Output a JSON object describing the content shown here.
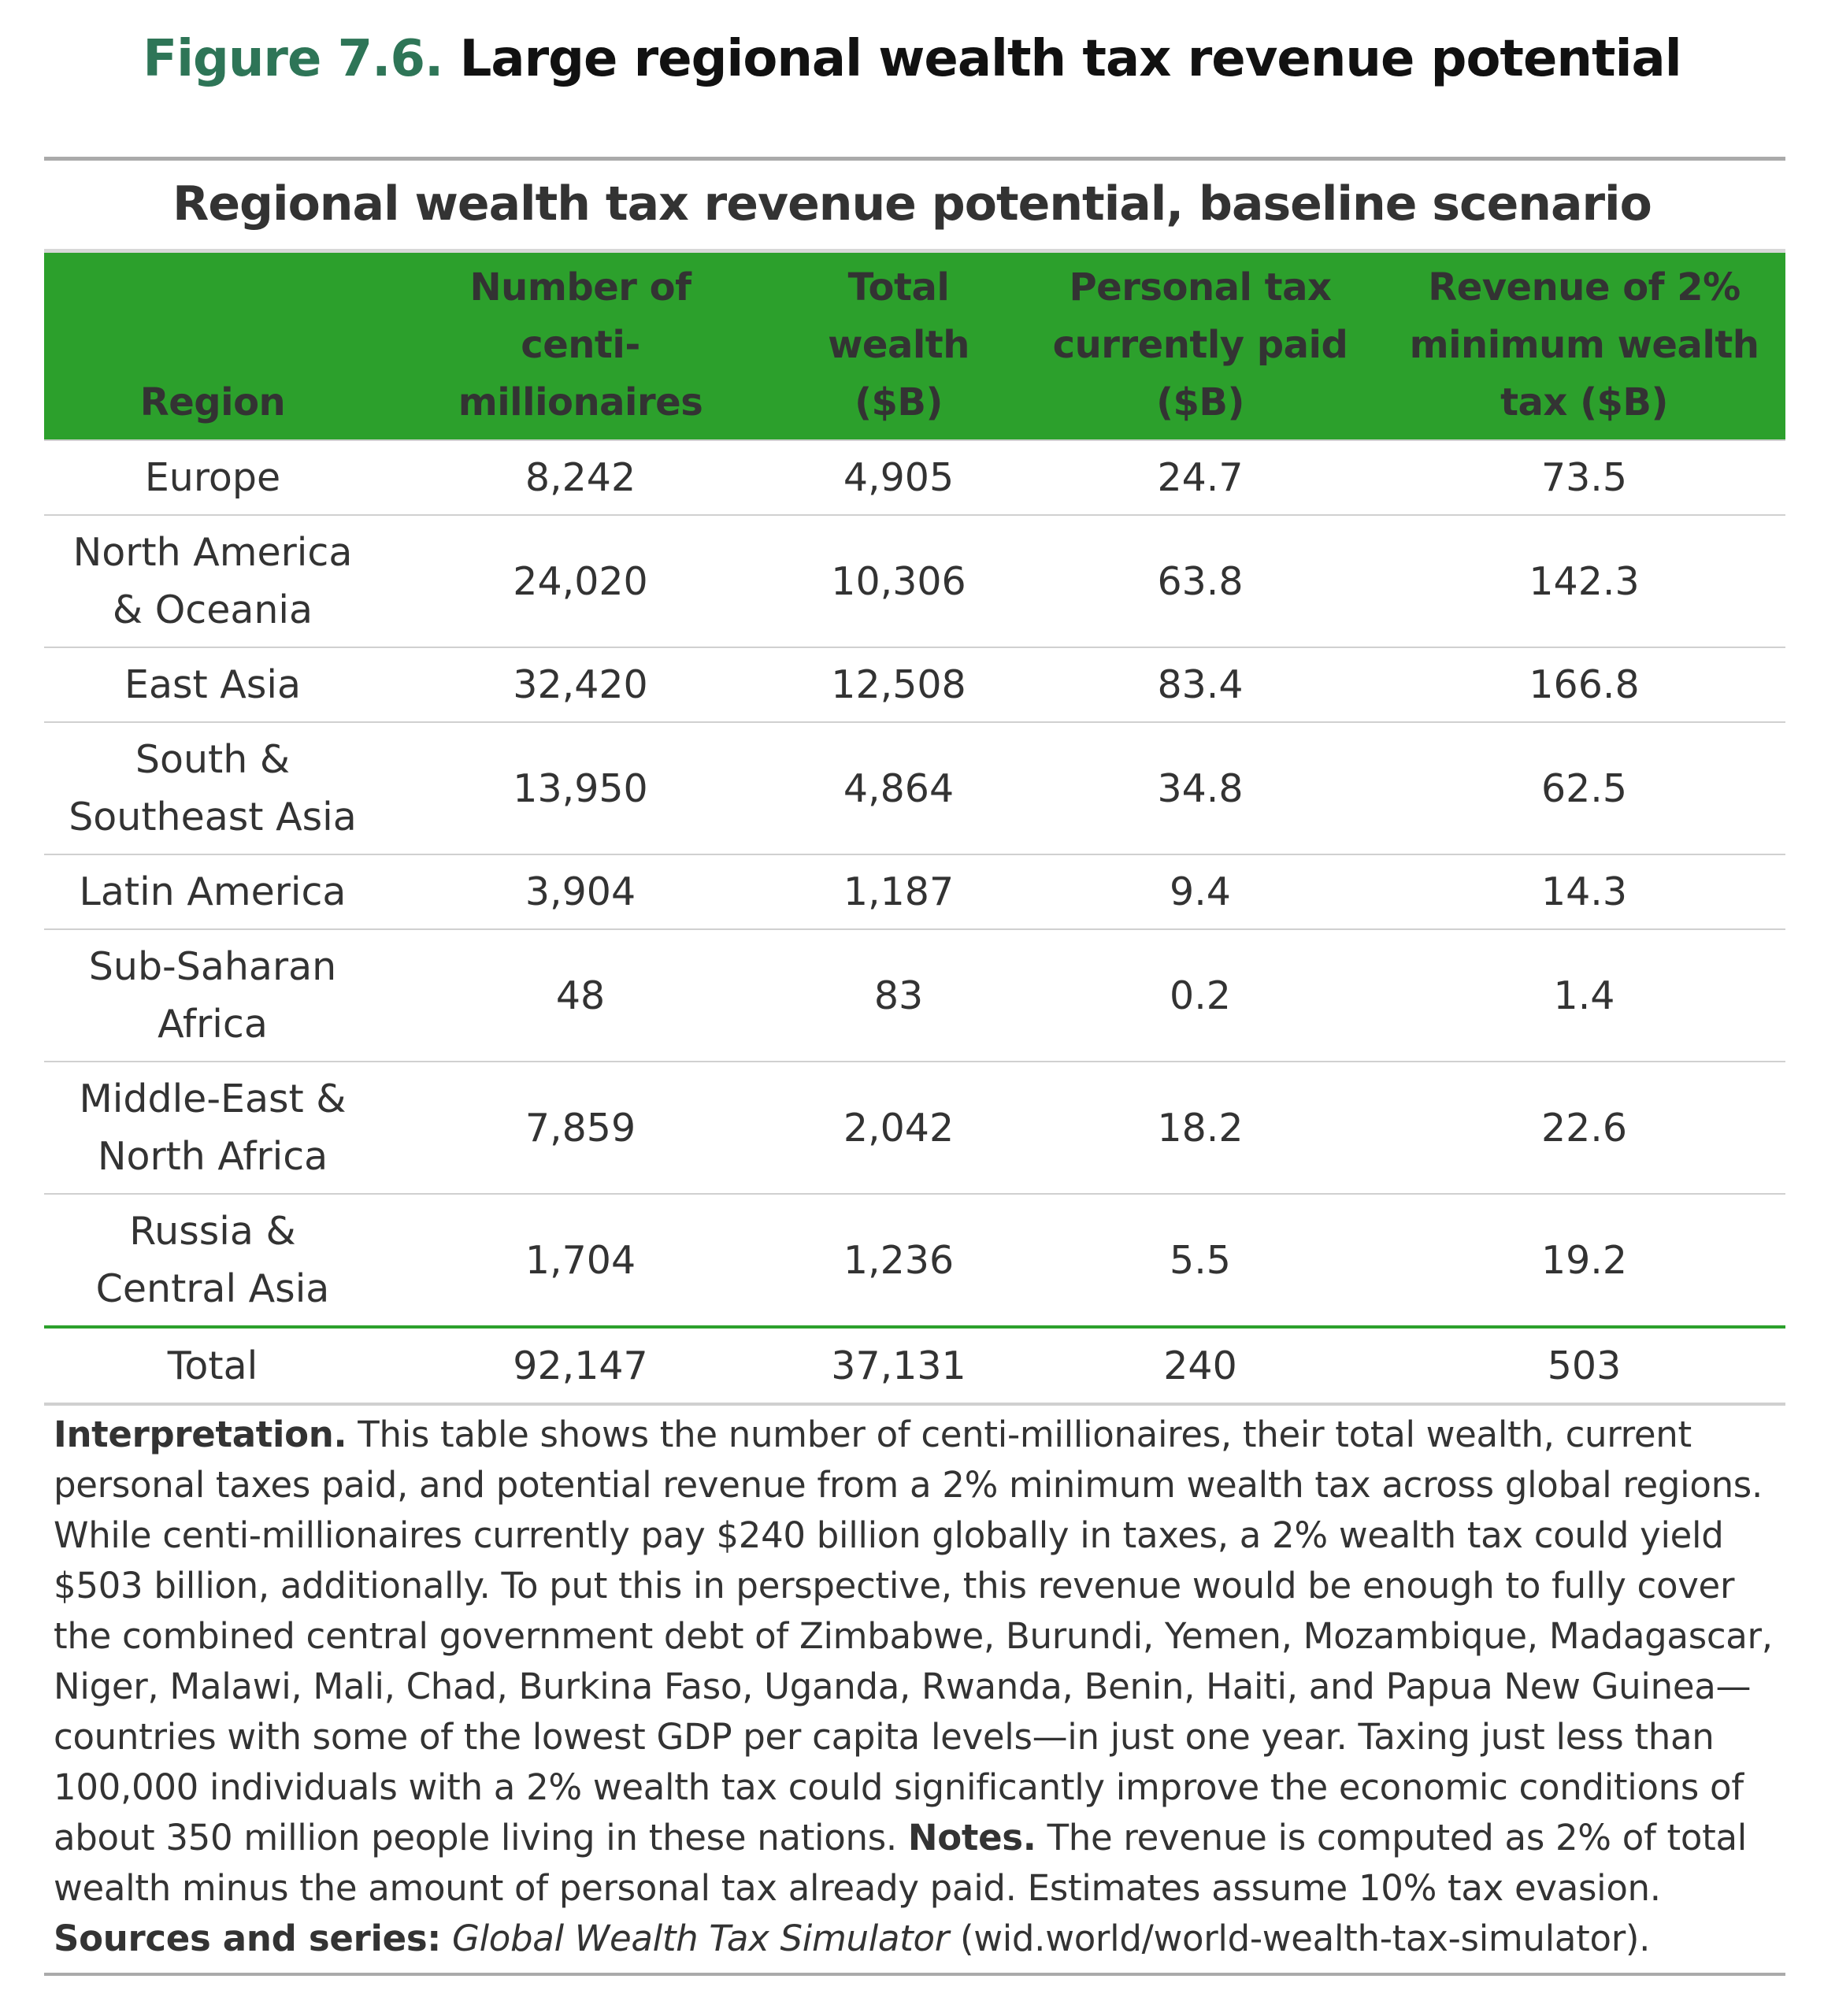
{
  "figure": {
    "label": "Figure 7.6.",
    "title": "Large regional wealth tax revenue potential"
  },
  "table": {
    "subtitle": "Regional wealth tax revenue potential, baseline scenario",
    "header_color": "#2ca02c",
    "columns": [
      "Region",
      "Number of centi-millionaires",
      "Total wealth ($B)",
      "Personal tax currently paid ($B)",
      "Revenue of 2% minimum wealth tax ($B)"
    ],
    "rows": [
      {
        "region": "Europe",
        "centi_millionaires": "8,242",
        "total_wealth": "4,905",
        "tax_paid": "24.7",
        "revenue": "73.5"
      },
      {
        "region": "North America & Oceania",
        "centi_millionaires": "24,020",
        "total_wealth": "10,306",
        "tax_paid": "63.8",
        "revenue": "142.3"
      },
      {
        "region": "East Asia",
        "centi_millionaires": "32,420",
        "total_wealth": "12,508",
        "tax_paid": "83.4",
        "revenue": "166.8"
      },
      {
        "region": "South & Southeast Asia",
        "centi_millionaires": "13,950",
        "total_wealth": "4,864",
        "tax_paid": "34.8",
        "revenue": "62.5"
      },
      {
        "region": "Latin America",
        "centi_millionaires": "3,904",
        "total_wealth": "1,187",
        "tax_paid": "9.4",
        "revenue": "14.3"
      },
      {
        "region": "Sub-Saharan Africa",
        "centi_millionaires": "48",
        "total_wealth": "83",
        "tax_paid": "0.2",
        "revenue": "1.4"
      },
      {
        "region": "Middle-East & North Africa",
        "centi_millionaires": "7,859",
        "total_wealth": "2,042",
        "tax_paid": "18.2",
        "revenue": "22.6"
      },
      {
        "region": "Russia & Central Asia",
        "centi_millionaires": "1,704",
        "total_wealth": "1,236",
        "tax_paid": "5.5",
        "revenue": "19.2"
      }
    ],
    "total": {
      "region": "Total",
      "centi_millionaires": "92,147",
      "total_wealth": "37,131",
      "tax_paid": "240",
      "revenue": "503"
    }
  },
  "notes": {
    "interpretation_label": "Interpretation.",
    "interpretation_text": " This table shows the number of centi-millionaires, their total wealth, current personal taxes paid, and potential revenue from a 2% minimum wealth tax across global regions. While centi-millionaires currently pay $240 billion globally in taxes, a 2% wealth tax could yield $503 billion, additionally. To put this in perspective, this revenue would be enough to fully cover the combined central government debt of Zimbabwe, Burundi, Yemen, Mozambique, Madagascar, Niger, Malawi, Mali, Chad, Burkina Faso, Uganda, Rwanda, Benin, Haiti, and Papua New Guinea—countries with some of the lowest GDP per capita levels—in just one year. Taxing just less than 100,000 individuals with a 2% wealth tax could significantly improve the economic conditions of about 350 million people living in these nations. ",
    "notes_label": "Notes.",
    "notes_text": " The revenue is computed as 2% of total wealth minus the amount of personal tax already paid. Estimates assume 10% tax evasion. ",
    "sources_label": "Sources and series:",
    "sources_title": " Global Wealth Tax Simulator",
    "sources_text": " (wid.world/world-wealth-tax-simulator)."
  }
}
